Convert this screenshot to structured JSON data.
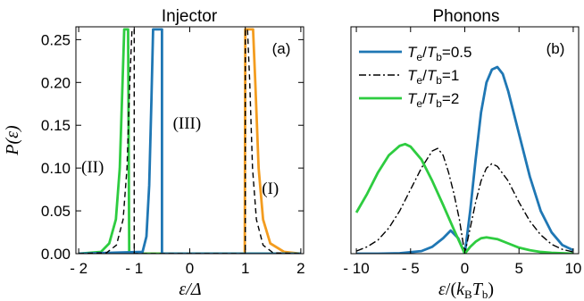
{
  "chart_data": [
    {
      "type": "line",
      "title": "Injector",
      "panel_label": "(a)",
      "xlabel": "ε/Δ",
      "ylabel": "P(ε)",
      "xlim": [
        -2.05,
        2.05
      ],
      "ylim": [
        0,
        0.265
      ],
      "xticks": [
        -2,
        -1,
        0,
        1,
        2
      ],
      "xtick_labels": [
        "- 2",
        "- 1",
        "0",
        "1",
        "2"
      ],
      "yticks": [
        0.0,
        0.05,
        0.1,
        0.15,
        0.2,
        0.25
      ],
      "ytick_labels": [
        "0.00",
        "0.05",
        "0.10",
        "0.15",
        "0.20",
        "0.25"
      ],
      "grid": false,
      "series": [
        {
          "name": "(I)",
          "color": "#f39c1f",
          "dash": "solid",
          "x": [
            -2.0,
            0.99,
            1.0,
            1.02,
            1.05,
            1.1,
            1.14,
            1.18,
            1.24,
            1.32,
            1.45,
            1.7,
            2.0
          ],
          "y": [
            0.0,
            0.0,
            0.262,
            0.262,
            0.262,
            0.262,
            0.262,
            0.2,
            0.1,
            0.04,
            0.012,
            0.002,
            0.0
          ]
        },
        {
          "name": "(II)",
          "color": "#2ecc40",
          "dash": "solid",
          "x": [
            -2.0,
            -1.6,
            -1.45,
            -1.33,
            -1.26,
            -1.21,
            -1.18,
            -1.15,
            -1.12,
            -1.11,
            -1.09,
            2.0
          ],
          "y": [
            0.0,
            0.002,
            0.012,
            0.04,
            0.1,
            0.2,
            0.262,
            0.262,
            0.262,
            0.262,
            0.0,
            0.0
          ]
        },
        {
          "name": "(III)",
          "color": "#1f77b4",
          "dash": "solid",
          "x": [
            -2.0,
            -0.85,
            -0.78,
            -0.73,
            -0.69,
            -0.66,
            -0.5,
            -0.5,
            2.0
          ],
          "y": [
            0.0,
            0.002,
            0.02,
            0.08,
            0.18,
            0.262,
            0.262,
            0.0,
            0.0
          ]
        },
        {
          "name": "",
          "color": "#000000",
          "dash": "dashed",
          "x": [
            -2.0,
            -1.5,
            -1.32,
            -1.2,
            -1.13,
            -1.08,
            -1.04,
            -1.0,
            -1.0,
            1.0,
            1.0,
            1.04,
            1.08,
            1.13,
            1.2,
            1.32,
            1.5,
            2.0
          ],
          "y": [
            0.0,
            0.001,
            0.01,
            0.04,
            0.1,
            0.2,
            0.262,
            0.262,
            0.0,
            0.0,
            0.262,
            0.262,
            0.2,
            0.1,
            0.04,
            0.01,
            0.001,
            0.0
          ]
        }
      ],
      "annotations": [
        {
          "text": "(I)",
          "x": 1.45,
          "y": 0.07
        },
        {
          "text": "(II)",
          "x": -1.75,
          "y": 0.095
        },
        {
          "text": "(III)",
          "x": -0.05,
          "y": 0.146
        }
      ]
    },
    {
      "type": "line",
      "title": "Phonons",
      "panel_label": "(b)",
      "xlabel": "ε/(k_B T_b)",
      "xlim": [
        -10.5,
        10.5
      ],
      "ylim": [
        0,
        0.265
      ],
      "xticks": [
        -10,
        -5,
        0,
        5,
        10
      ],
      "xtick_labels": [
        "- 10",
        "- 5",
        "0",
        "5",
        "10"
      ],
      "grid": false,
      "legend": {
        "position": "top-left",
        "entries": [
          {
            "label": "Te/Tb=0.5",
            "color": "#1f77b4",
            "dash": "solid"
          },
          {
            "label": "Te/Tb=1",
            "color": "#000000",
            "dash": "dashdot"
          },
          {
            "label": "Te/Tb=2",
            "color": "#2ecc40",
            "dash": "solid"
          }
        ]
      },
      "series": [
        {
          "name": "Te/Tb=0.5",
          "color": "#1f77b4",
          "dash": "solid",
          "x": [
            -10,
            -8,
            -6,
            -4,
            -3,
            -2,
            -1.3,
            -0.6,
            0,
            0.5,
            1,
            1.5,
            2,
            2.5,
            3,
            3.5,
            4,
            5,
            6,
            7,
            8,
            9,
            10
          ],
          "y": [
            0,
            0,
            0.0005,
            0.003,
            0.008,
            0.018,
            0.027,
            0.018,
            0,
            0.05,
            0.11,
            0.165,
            0.2,
            0.215,
            0.218,
            0.21,
            0.19,
            0.14,
            0.09,
            0.05,
            0.025,
            0.01,
            0.004
          ]
        },
        {
          "name": "Te/Tb=1",
          "color": "#000000",
          "dash": "dashdot",
          "x": [
            -10,
            -9,
            -8,
            -7,
            -6,
            -5,
            -4,
            -3,
            -2.5,
            -2,
            -1.5,
            -1,
            -0.5,
            0,
            0.5,
            1,
            1.5,
            2,
            2.5,
            3,
            4,
            5,
            6,
            7,
            8,
            9,
            10
          ],
          "y": [
            0.003,
            0.008,
            0.016,
            0.03,
            0.05,
            0.075,
            0.1,
            0.12,
            0.123,
            0.115,
            0.095,
            0.07,
            0.04,
            0,
            0.03,
            0.06,
            0.085,
            0.1,
            0.105,
            0.102,
            0.085,
            0.06,
            0.038,
            0.022,
            0.011,
            0.005,
            0.002
          ]
        },
        {
          "name": "Te/Tb=2",
          "color": "#2ecc40",
          "dash": "solid",
          "x": [
            -10,
            -9,
            -8,
            -7,
            -6,
            -5.5,
            -5,
            -4,
            -3,
            -2,
            -1,
            0,
            0.5,
            1,
            1.5,
            2,
            3,
            4,
            5,
            6,
            7,
            8,
            9,
            10
          ],
          "y": [
            0.048,
            0.07,
            0.095,
            0.115,
            0.126,
            0.128,
            0.125,
            0.11,
            0.085,
            0.057,
            0.028,
            0,
            0.008,
            0.014,
            0.018,
            0.019,
            0.017,
            0.012,
            0.007,
            0.004,
            0.002,
            0.001,
            0.0005,
            0
          ]
        }
      ]
    }
  ]
}
